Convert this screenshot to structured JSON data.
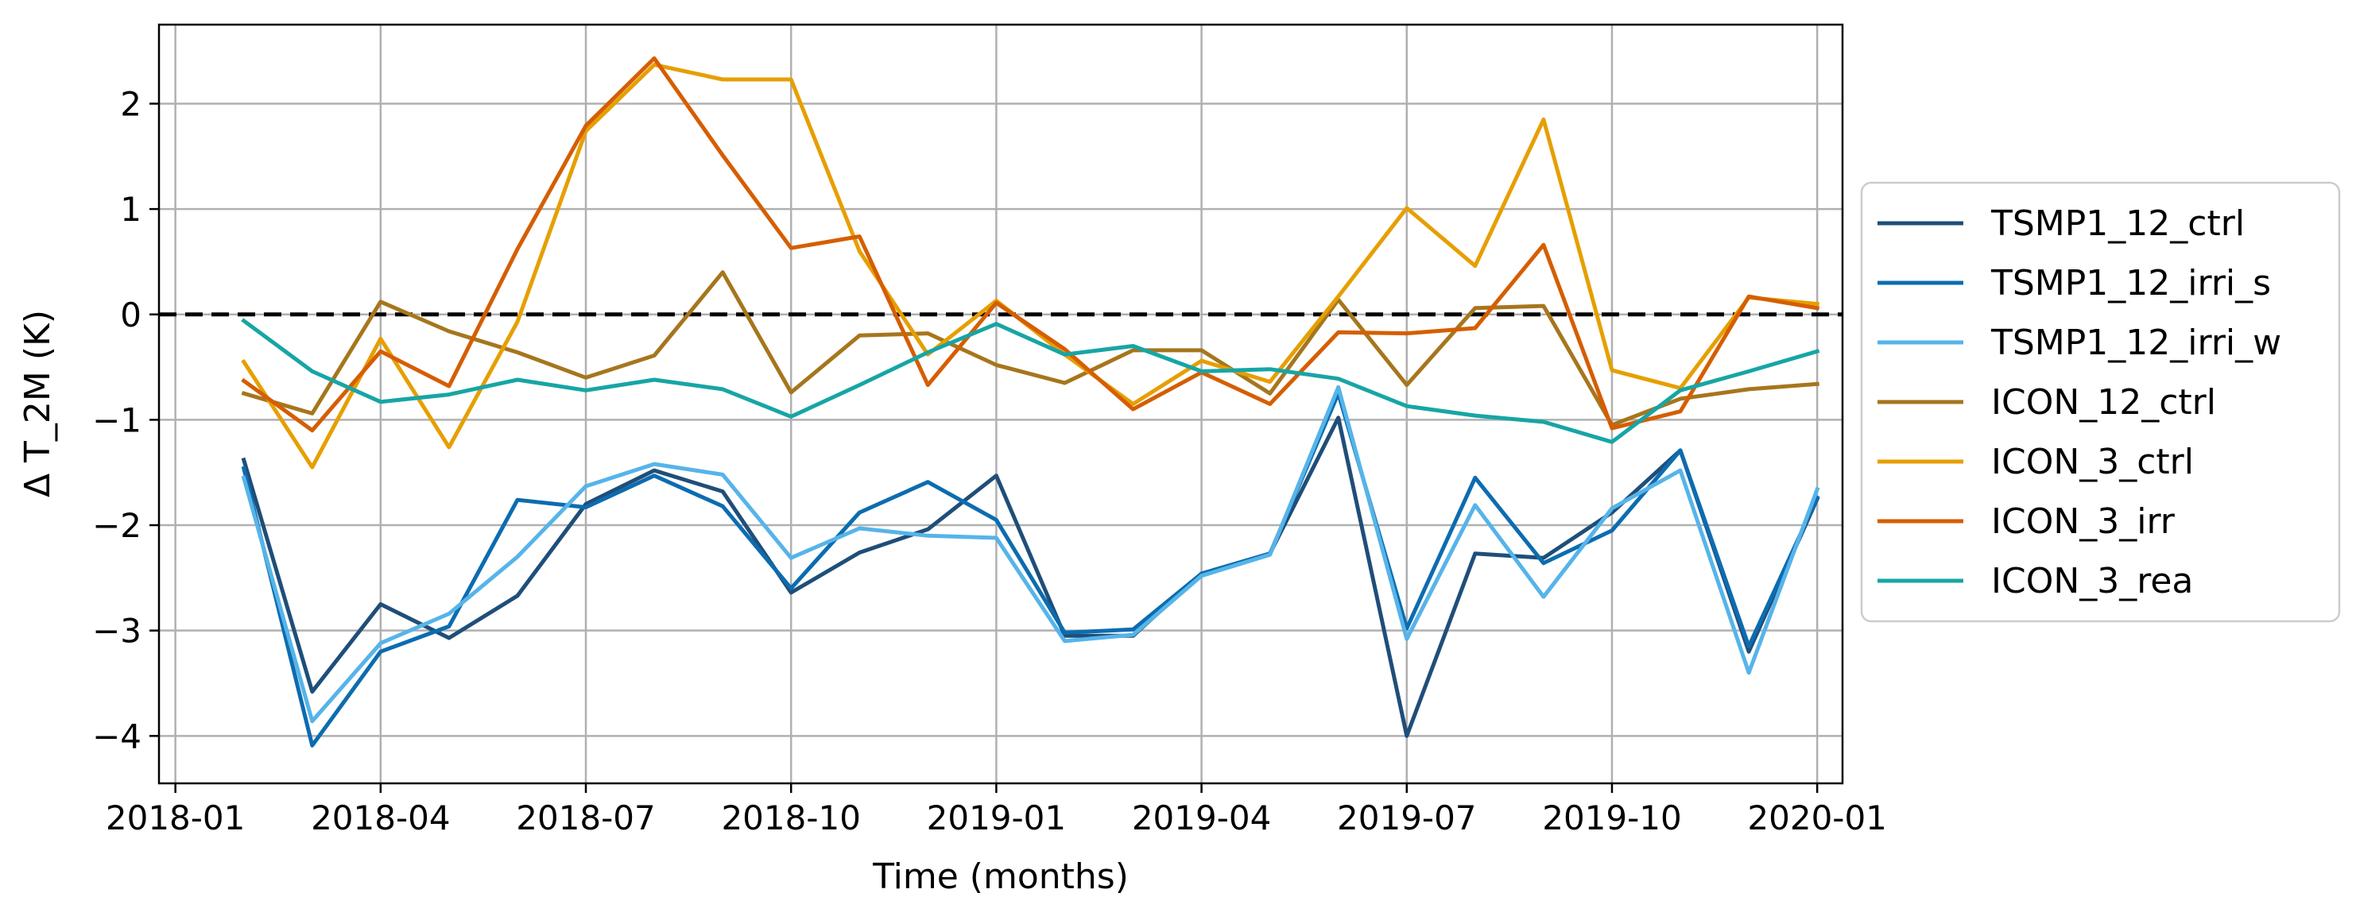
{
  "chart_data": {
    "type": "line",
    "xlabel": "Time (months)",
    "ylabel": "Δ T_2M (K)",
    "ylim": [
      -4.45,
      2.75
    ],
    "yticks": [
      2,
      1,
      0,
      -1,
      -2,
      -3,
      -4
    ],
    "ytick_labels": [
      "2",
      "1",
      "0",
      "−1",
      "−2",
      "−3",
      "−4"
    ],
    "xlim_month_index": [
      -0.24,
      24.37
    ],
    "xticks_month_index": [
      0,
      3,
      6,
      9,
      12,
      15,
      18,
      21,
      24
    ],
    "xtick_labels": [
      "2018-01",
      "2018-04",
      "2018-07",
      "2018-10",
      "2019-01",
      "2019-04",
      "2019-07",
      "2019-10",
      "2020-01"
    ],
    "x_month_index": [
      1,
      2,
      3,
      4,
      5,
      6,
      7,
      8,
      9,
      10,
      11,
      12,
      13,
      14,
      15,
      16,
      17,
      18,
      19,
      20,
      21,
      22,
      23,
      24
    ],
    "zero_line": 0,
    "grid": true,
    "legend_position": "right, outside plot",
    "series": [
      {
        "name": "TSMP1_12_ctrl",
        "color": "#1f4e79",
        "values": [
          -1.38,
          -3.58,
          -2.75,
          -3.07,
          -2.67,
          -1.8,
          -1.48,
          -1.68,
          -2.64,
          -2.26,
          -2.04,
          -1.53,
          -3.05,
          -3.05,
          -2.46,
          -2.27,
          -0.98,
          -4.0,
          -2.27,
          -2.31,
          -1.88,
          -1.29,
          -3.2,
          -1.75
        ]
      },
      {
        "name": "TSMP1_12_irri_s",
        "color": "#0c6cb0",
        "values": [
          -1.46,
          -4.09,
          -3.2,
          -2.96,
          -1.76,
          -1.83,
          -1.53,
          -1.82,
          -2.6,
          -1.88,
          -1.59,
          -1.95,
          -3.02,
          -2.99,
          -2.46,
          -2.27,
          -0.75,
          -2.98,
          -1.55,
          -2.36,
          -2.05,
          -1.29,
          -3.15,
          -1.74
        ]
      },
      {
        "name": "TSMP1_12_irri_w",
        "color": "#56b4e9",
        "values": [
          -1.55,
          -3.86,
          -3.12,
          -2.84,
          -2.3,
          -1.63,
          -1.42,
          -1.52,
          -2.31,
          -2.03,
          -2.1,
          -2.12,
          -3.1,
          -3.04,
          -2.48,
          -2.28,
          -0.69,
          -3.08,
          -1.81,
          -2.68,
          -1.84,
          -1.48,
          -3.4,
          -1.66
        ]
      },
      {
        "name": "ICON_12_ctrl",
        "color": "#a6761d",
        "values": [
          -0.75,
          -0.94,
          0.12,
          -0.16,
          -0.36,
          -0.6,
          -0.39,
          0.4,
          -0.74,
          -0.2,
          -0.18,
          -0.48,
          -0.65,
          -0.34,
          -0.34,
          -0.75,
          0.14,
          -0.67,
          0.06,
          0.08,
          -1.05,
          -0.8,
          -0.71,
          -0.66
        ]
      },
      {
        "name": "ICON_3_ctrl",
        "color": "#e69f00",
        "values": [
          -0.45,
          -1.45,
          -0.23,
          -1.26,
          -0.07,
          1.74,
          2.37,
          2.23,
          2.23,
          0.6,
          -0.38,
          0.13,
          -0.38,
          -0.85,
          -0.44,
          -0.64,
          0.17,
          1.01,
          0.46,
          1.85,
          -0.53,
          -0.7,
          0.16,
          0.1
        ]
      },
      {
        "name": "ICON_3_irr",
        "color": "#d55e00",
        "values": [
          -0.63,
          -1.1,
          -0.35,
          -0.68,
          0.62,
          1.79,
          2.43,
          1.51,
          0.63,
          0.74,
          -0.67,
          0.11,
          -0.33,
          -0.9,
          -0.55,
          -0.85,
          -0.17,
          -0.18,
          -0.13,
          0.66,
          -1.08,
          -0.92,
          0.17,
          0.06
        ]
      },
      {
        "name": "ICON_3_rea",
        "color": "#17a5a5",
        "values": [
          -0.06,
          -0.54,
          -0.83,
          -0.76,
          -0.62,
          -0.72,
          -0.62,
          -0.71,
          -0.97,
          -0.67,
          -0.36,
          -0.09,
          -0.38,
          -0.3,
          -0.54,
          -0.52,
          -0.61,
          -0.87,
          -0.96,
          -1.02,
          -1.21,
          -0.72,
          -0.54,
          -0.35
        ]
      }
    ]
  }
}
